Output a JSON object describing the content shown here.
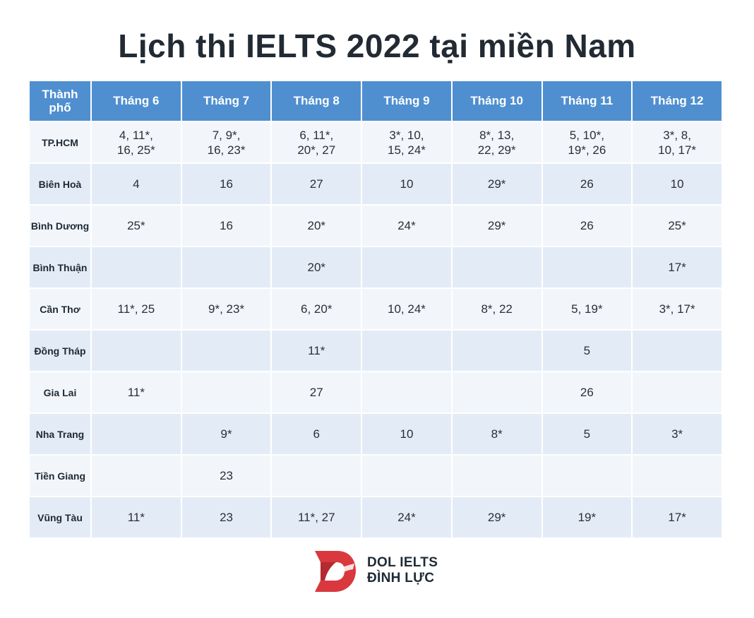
{
  "title": "Lịch thi IELTS 2022 tại miền Nam",
  "table": {
    "city_header": "Thành phố",
    "months": [
      "Tháng 6",
      "Tháng 7",
      "Tháng 8",
      "Tháng 9",
      "Tháng 10",
      "Tháng 11",
      "Tháng 12"
    ],
    "rows": [
      {
        "city": "TP.HCM",
        "cells": [
          "4, 11*, 16, 25*",
          "7, 9*, 16, 23*",
          "6, 11*, 20*, 27",
          "3*, 10, 15, 24*",
          "8*, 13, 22, 29*",
          "5, 10*, 19*, 26",
          "3*, 8, 10, 17*"
        ]
      },
      {
        "city": "Biên Hoà",
        "cells": [
          "4",
          "16",
          "27",
          "10",
          "29*",
          "26",
          "10"
        ]
      },
      {
        "city": "Bình Dương",
        "cells": [
          "25*",
          "16",
          "20*",
          "24*",
          "29*",
          "26",
          "25*"
        ]
      },
      {
        "city": "Bình Thuận",
        "cells": [
          "",
          "",
          "20*",
          "",
          "",
          "",
          "17*"
        ]
      },
      {
        "city": "Cần Thơ",
        "cells": [
          "11*, 25",
          "9*, 23*",
          "6, 20*",
          "10, 24*",
          "8*, 22",
          "5, 19*",
          "3*, 17*"
        ]
      },
      {
        "city": "Đồng Tháp",
        "cells": [
          "",
          "",
          "11*",
          "",
          "",
          "5",
          ""
        ]
      },
      {
        "city": "Gia Lai",
        "cells": [
          "11*",
          "",
          "27",
          "",
          "",
          "26",
          ""
        ]
      },
      {
        "city": "Nha Trang",
        "cells": [
          "",
          "9*",
          "6",
          "10",
          "8*",
          "5",
          "3*"
        ]
      },
      {
        "city": "Tiền Giang",
        "cells": [
          "",
          "23",
          "",
          "",
          "",
          "",
          ""
        ]
      },
      {
        "city": "Vũng Tàu",
        "cells": [
          "11*",
          "23",
          "11*, 27",
          "24*",
          "29*",
          "19*",
          "17*"
        ]
      }
    ]
  },
  "logo": {
    "line1": "DOL IELTS",
    "line2": "ĐÌNH LỰC",
    "icon": "dol-logo-icon",
    "colors": {
      "red": "#d9383f",
      "dark": "#1f2a36"
    }
  },
  "colors": {
    "header_bg": "#4f8fd0",
    "row_light": "#f2f6fb",
    "row_dark": "#e3ecf6",
    "title": "#222a33"
  }
}
